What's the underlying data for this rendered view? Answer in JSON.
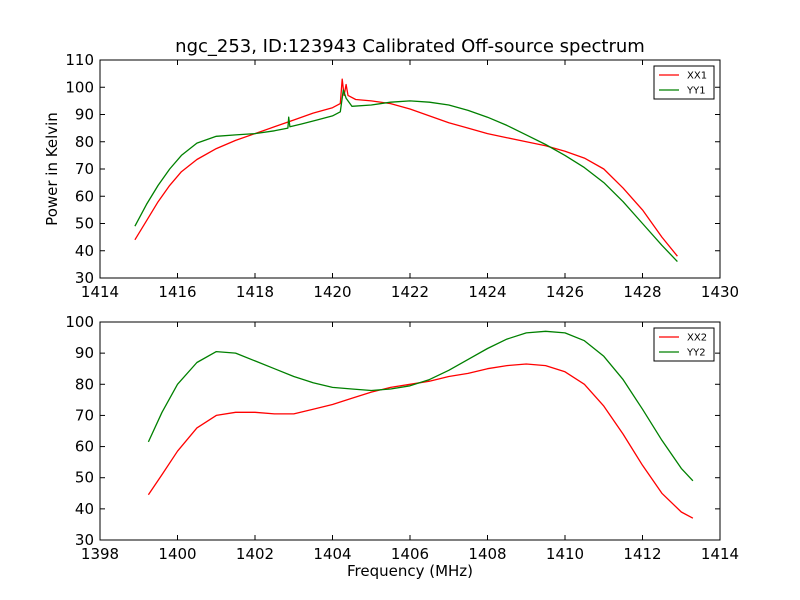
{
  "title": "ngc_253, ID:123943 Calibrated Off-source spectrum",
  "xlabel": "Frequency (MHz)",
  "ylabel": "Power in Kelvin",
  "chart_data": [
    {
      "type": "line",
      "xlim": [
        1414,
        1430
      ],
      "ylim": [
        30,
        110
      ],
      "xticks": [
        1414,
        1416,
        1418,
        1420,
        1422,
        1424,
        1426,
        1428,
        1430
      ],
      "yticks": [
        30,
        40,
        50,
        60,
        70,
        80,
        90,
        100,
        110
      ],
      "legend_position": "top-right",
      "series": [
        {
          "name": "XX1",
          "color": "#ff0000",
          "x": [
            1414.9,
            1415.2,
            1415.5,
            1415.8,
            1416.1,
            1416.5,
            1417.0,
            1417.5,
            1418.0,
            1418.5,
            1419.0,
            1419.5,
            1420.0,
            1420.2,
            1420.25,
            1420.3,
            1420.35,
            1420.4,
            1420.6,
            1421.0,
            1421.5,
            1422.0,
            1422.5,
            1423.0,
            1423.5,
            1424.0,
            1424.5,
            1425.0,
            1425.5,
            1426.0,
            1426.5,
            1427.0,
            1427.5,
            1428.0,
            1428.5,
            1428.9
          ],
          "y": [
            44,
            51,
            58,
            64,
            69,
            73.5,
            77.5,
            80.5,
            83,
            85.5,
            88,
            90.5,
            92.5,
            94,
            103,
            97,
            101,
            97,
            95.5,
            95,
            94,
            92,
            89.5,
            87,
            85,
            83,
            81.5,
            80,
            78.5,
            76.5,
            74,
            70,
            63,
            55,
            45,
            38
          ]
        },
        {
          "name": "YY1",
          "color": "#008000",
          "x": [
            1414.9,
            1415.2,
            1415.5,
            1415.8,
            1416.1,
            1416.5,
            1417.0,
            1417.5,
            1418.0,
            1418.5,
            1418.85,
            1418.87,
            1418.9,
            1419.2,
            1419.6,
            1420.0,
            1420.2,
            1420.28,
            1420.35,
            1420.5,
            1421.0,
            1421.5,
            1422.0,
            1422.5,
            1423.0,
            1423.5,
            1424.0,
            1424.5,
            1425.0,
            1425.5,
            1426.0,
            1426.5,
            1427.0,
            1427.5,
            1428.0,
            1428.5,
            1428.9
          ],
          "y": [
            49,
            57,
            64,
            70,
            75,
            79.5,
            82,
            82.5,
            83,
            84,
            85,
            89,
            85.5,
            86.5,
            88,
            89.5,
            91,
            99,
            96,
            93,
            93.5,
            94.5,
            95,
            94.5,
            93.5,
            91.5,
            89,
            86,
            82.5,
            79,
            75,
            70.5,
            65,
            58,
            50,
            42,
            36
          ]
        }
      ]
    },
    {
      "type": "line",
      "xlim": [
        1398,
        1414
      ],
      "ylim": [
        30,
        100
      ],
      "xticks": [
        1398,
        1400,
        1402,
        1404,
        1406,
        1408,
        1410,
        1412,
        1414
      ],
      "yticks": [
        30,
        40,
        50,
        60,
        70,
        80,
        90,
        100
      ],
      "legend_position": "top-right",
      "series": [
        {
          "name": "XX2",
          "color": "#ff0000",
          "x": [
            1399.25,
            1399.6,
            1400.0,
            1400.5,
            1401.0,
            1401.5,
            1402.0,
            1402.5,
            1403.0,
            1403.5,
            1404.0,
            1404.5,
            1405.0,
            1405.5,
            1406.0,
            1406.5,
            1407.0,
            1407.5,
            1408.0,
            1408.5,
            1409.0,
            1409.5,
            1410.0,
            1410.5,
            1411.0,
            1411.5,
            1412.0,
            1412.5,
            1413.0,
            1413.3
          ],
          "y": [
            44.5,
            51,
            58.5,
            66,
            70,
            71,
            71,
            70.5,
            70.5,
            72,
            73.5,
            75.5,
            77.5,
            79,
            80,
            81,
            82.5,
            83.5,
            85,
            86,
            86.5,
            86,
            84,
            80,
            73,
            64,
            54,
            45,
            39,
            37
          ]
        },
        {
          "name": "YY2",
          "color": "#008000",
          "x": [
            1399.25,
            1399.6,
            1400.0,
            1400.5,
            1401.0,
            1401.5,
            1402.0,
            1402.5,
            1403.0,
            1403.5,
            1404.0,
            1404.5,
            1405.0,
            1405.5,
            1406.0,
            1406.5,
            1407.0,
            1407.5,
            1408.0,
            1408.5,
            1409.0,
            1409.5,
            1410.0,
            1410.5,
            1411.0,
            1411.5,
            1412.0,
            1412.5,
            1413.0,
            1413.3
          ],
          "y": [
            61.5,
            71,
            80,
            87,
            90.5,
            90,
            87.5,
            85,
            82.5,
            80.5,
            79,
            78.5,
            78,
            78.5,
            79.5,
            81.5,
            84.5,
            88,
            91.5,
            94.5,
            96.5,
            97,
            96.5,
            94,
            89,
            81.5,
            72,
            62,
            53,
            49
          ]
        }
      ]
    }
  ]
}
